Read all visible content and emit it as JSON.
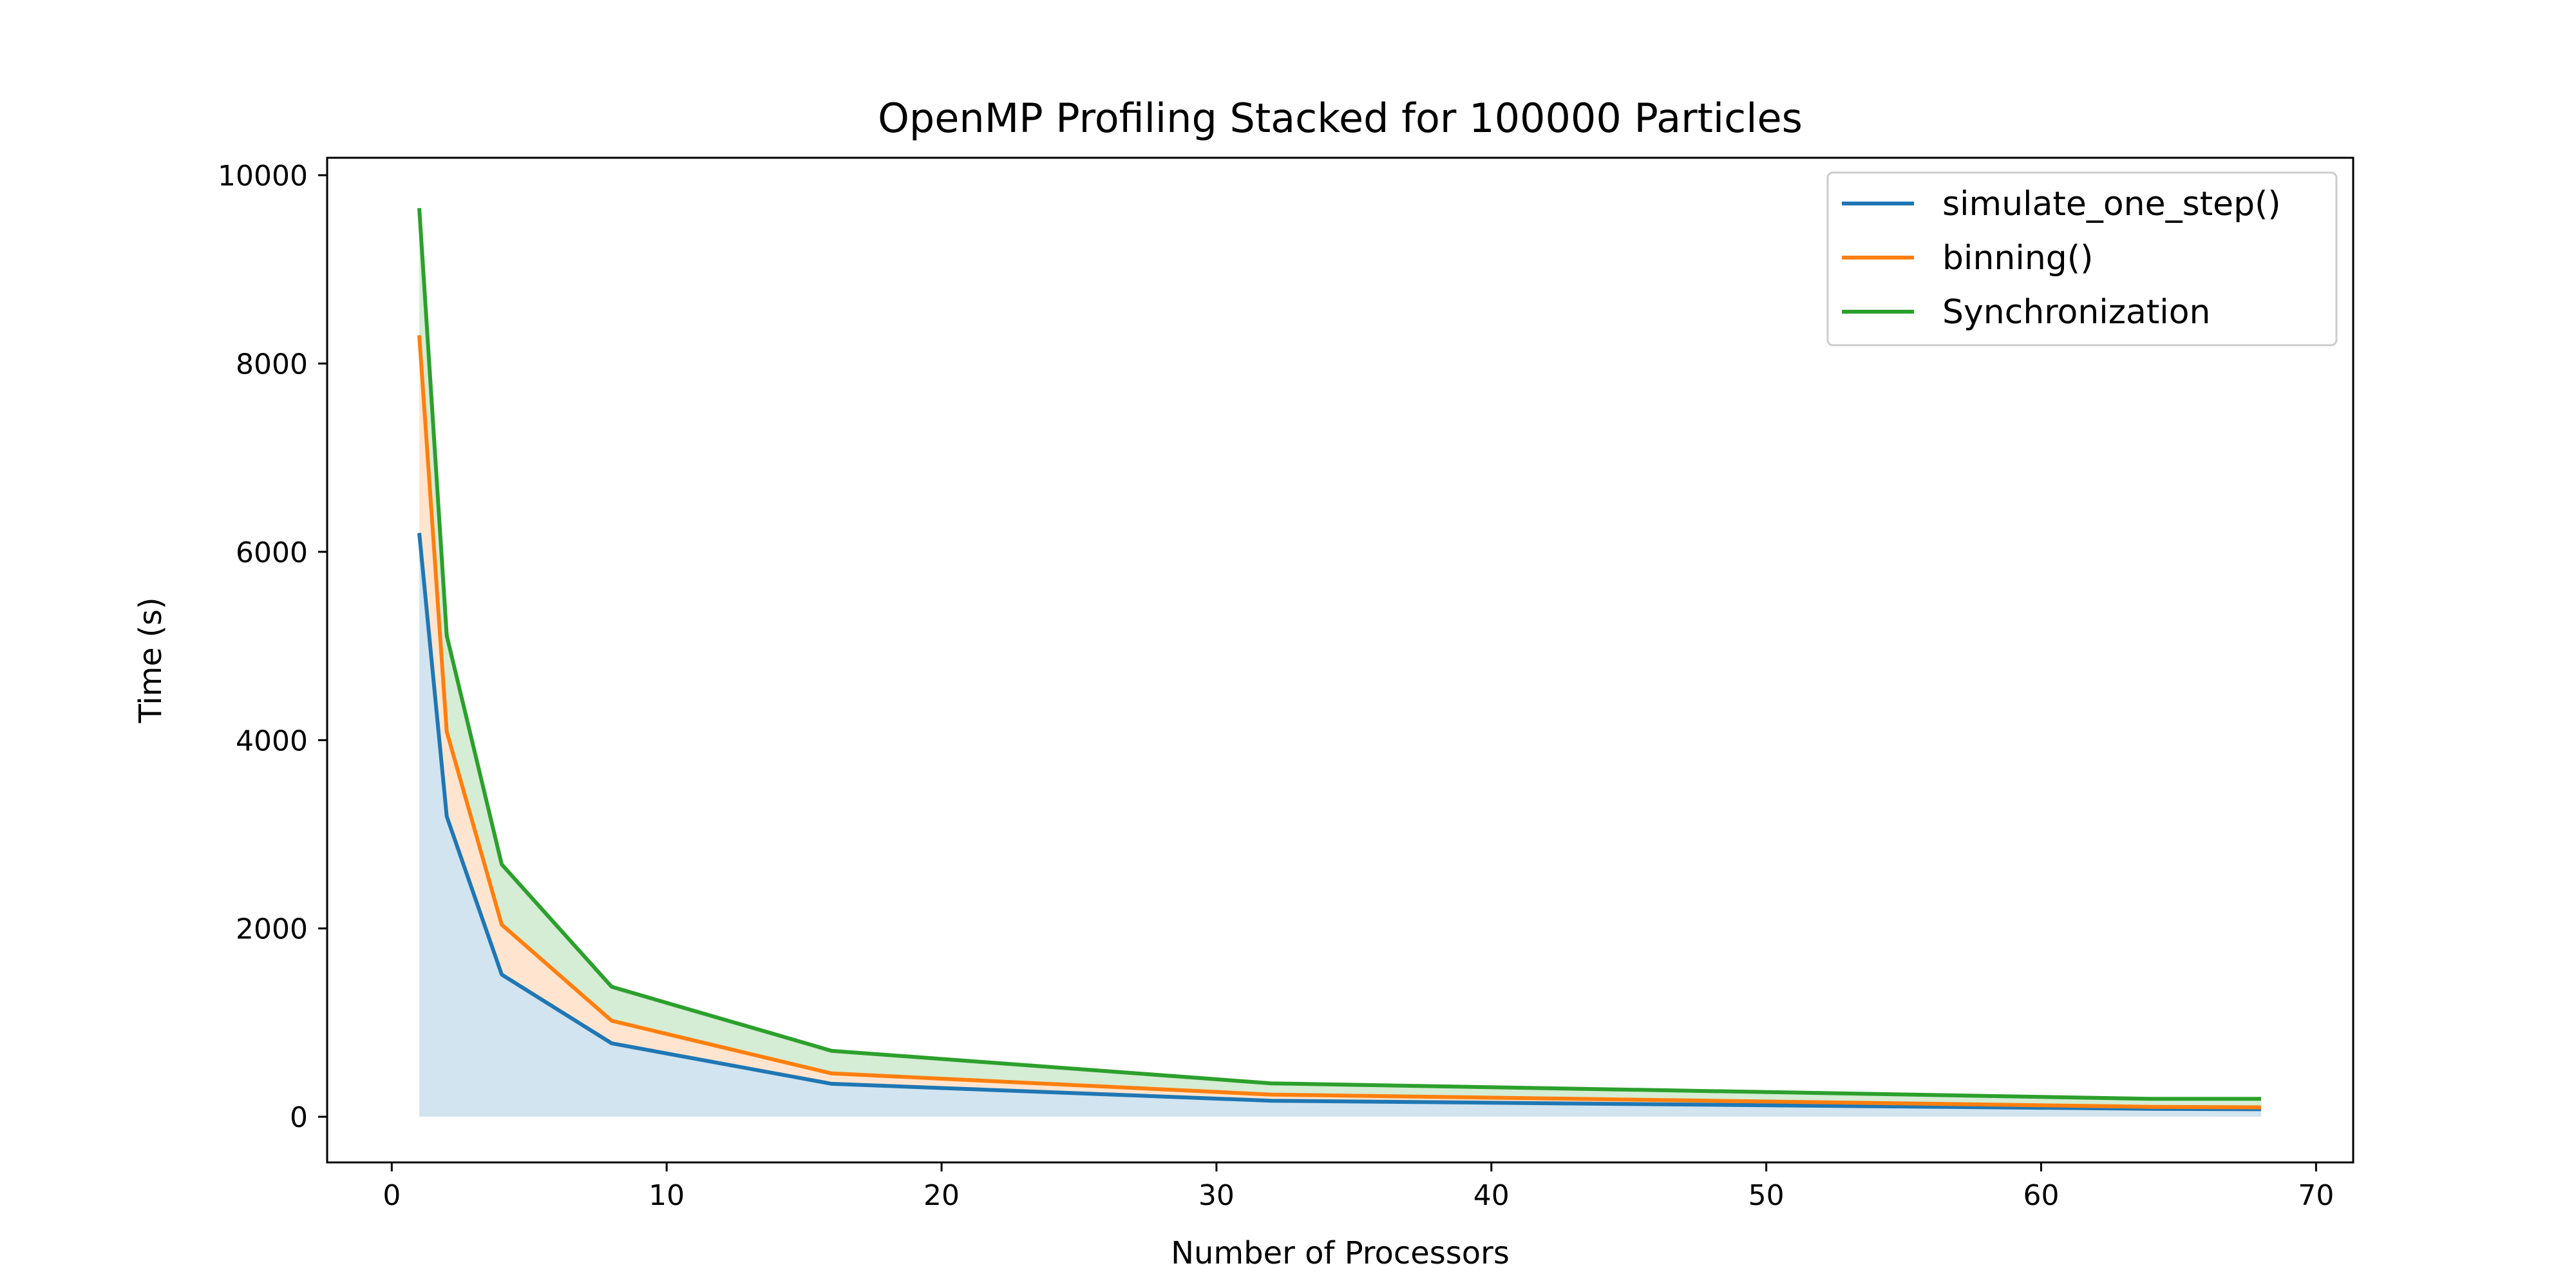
{
  "chart_data": {
    "type": "area",
    "stacked": true,
    "title": "OpenMP Profiling Stacked for 100000 Particles",
    "xlabel": "Number of Processors",
    "ylabel": "Time (s)",
    "xlim": [
      -2.35,
      71.35
    ],
    "ylim": [
      -485,
      10185
    ],
    "xticks": [
      0,
      10,
      20,
      30,
      40,
      50,
      60,
      70
    ],
    "yticks": [
      0,
      2000,
      4000,
      6000,
      8000,
      10000
    ],
    "grid": false,
    "legend_position": "top-right",
    "x": [
      1,
      2,
      4,
      8,
      16,
      32,
      64,
      68
    ],
    "series": [
      {
        "name": "simulate_one_step()",
        "color": "#1f77b4",
        "fill": "#1f77b4",
        "values": [
          6200,
          3190,
          1510,
          780,
          350,
          170,
          85,
          80
        ]
      },
      {
        "name": "binning()",
        "color": "#ff7f0e",
        "fill": "#ff7f0e",
        "values": [
          2100,
          900,
          530,
          240,
          110,
          65,
          20,
          20
        ]
      },
      {
        "name": "Synchronization",
        "color": "#2ca02c",
        "fill": "#2ca02c",
        "values": [
          1350,
          1020,
          640,
          360,
          240,
          120,
          85,
          90
        ]
      }
    ]
  }
}
